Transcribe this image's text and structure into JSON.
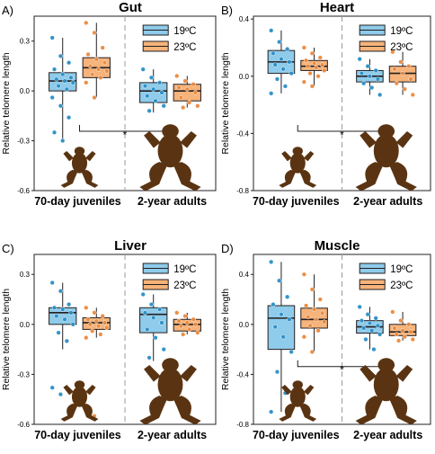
{
  "colors": {
    "cold": "#8fcbea",
    "cold_dark": "#2a8fc8",
    "warm": "#f6b37a",
    "warm_dark": "#ec8a3e",
    "frog": "#5a3412",
    "axis": "#231f20",
    "divider": "#9a9a9a"
  },
  "chart_data": [
    {
      "type": "box",
      "panel_label": "A)",
      "title": "Gut",
      "ylabel": "Relative telomere length",
      "ylim": [
        -0.6,
        0.45
      ],
      "yticks": [
        -0.6,
        -0.3,
        0.0,
        0.3
      ],
      "ytick_labels": [
        "-0.6",
        "-0.3",
        "0.0",
        "0.3"
      ],
      "categories": [
        "70-day juveniles",
        "2-year adults"
      ],
      "legend": [
        "19ºC",
        "23ºC"
      ],
      "legend_position": "top-right",
      "significance": "*",
      "series": [
        {
          "name": "19ºC",
          "boxes": [
            {
              "min": -0.3,
              "q1": 0.0,
              "median": 0.06,
              "q3": 0.11,
              "max": 0.32,
              "points": [
                0.32,
                0.21,
                0.17,
                0.13,
                0.1,
                0.08,
                0.07,
                0.06,
                0.05,
                0.03,
                0.01,
                -0.04,
                -0.09,
                -0.16,
                -0.25,
                -0.3
              ]
            },
            {
              "min": -0.13,
              "q1": -0.07,
              "median": 0.0,
              "q3": 0.05,
              "max": 0.13,
              "points": [
                0.13,
                0.08,
                0.05,
                0.03,
                0.01,
                -0.01,
                -0.03,
                -0.06,
                -0.09,
                -0.12
              ]
            }
          ]
        },
        {
          "name": "23ºC",
          "boxes": [
            {
              "min": -0.04,
              "q1": 0.08,
              "median": 0.14,
              "q3": 0.2,
              "max": 0.41,
              "points": [
                0.41,
                0.35,
                0.26,
                0.22,
                0.19,
                0.17,
                0.15,
                0.13,
                0.12,
                0.1,
                0.08,
                0.05,
                -0.04
              ]
            },
            {
              "min": -0.1,
              "q1": -0.06,
              "median": 0.0,
              "q3": 0.04,
              "max": 0.09,
              "points": [
                0.09,
                0.06,
                0.04,
                0.02,
                0.01,
                -0.01,
                -0.04,
                -0.07,
                -0.09,
                -0.1
              ]
            }
          ]
        }
      ]
    },
    {
      "type": "box",
      "panel_label": "B)",
      "title": "Heart",
      "ylabel": "Relative telomere length",
      "ylim": [
        -0.8,
        0.42
      ],
      "yticks": [
        -0.8,
        -0.4,
        0.0,
        0.4
      ],
      "ytick_labels": [
        "-0.8",
        "-0.4",
        "0.0",
        "0.4"
      ],
      "categories": [
        "70-day juveniles",
        "2-year adults"
      ],
      "legend": [
        "19ºC",
        "23ºC"
      ],
      "legend_position": "top-right",
      "significance": "*",
      "series": [
        {
          "name": "19ºC",
          "boxes": [
            {
              "min": -0.12,
              "q1": 0.02,
              "median": 0.1,
              "q3": 0.18,
              "max": 0.32,
              "points": [
                0.32,
                0.24,
                0.19,
                0.16,
                0.12,
                0.1,
                0.08,
                0.05,
                0.02,
                -0.02,
                -0.07,
                -0.12
              ]
            },
            {
              "min": -0.13,
              "q1": -0.04,
              "median": 0.0,
              "q3": 0.04,
              "max": 0.12,
              "points": [
                0.12,
                0.07,
                0.04,
                0.02,
                0.0,
                -0.02,
                -0.05,
                -0.08,
                -0.13
              ]
            }
          ]
        },
        {
          "name": "23ºC",
          "boxes": [
            {
              "min": -0.07,
              "q1": 0.04,
              "median": 0.07,
              "q3": 0.11,
              "max": 0.2,
              "points": [
                0.2,
                0.16,
                0.13,
                0.11,
                0.09,
                0.08,
                0.07,
                0.06,
                0.04,
                0.02,
                0.0,
                -0.04,
                -0.07
              ]
            },
            {
              "min": -0.13,
              "q1": -0.04,
              "median": 0.02,
              "q3": 0.07,
              "max": 0.17,
              "points": [
                0.17,
                0.1,
                0.07,
                0.05,
                0.02,
                -0.02,
                -0.05,
                -0.09,
                -0.13
              ]
            }
          ]
        }
      ]
    },
    {
      "type": "box",
      "panel_label": "C)",
      "title": "Liver",
      "ylabel": "Relative telomere length",
      "ylim": [
        -0.6,
        0.42
      ],
      "yticks": [
        -0.6,
        -0.3,
        0.0,
        0.3
      ],
      "ytick_labels": [
        "-0.6",
        "-0.3",
        "0.0",
        "0.3"
      ],
      "categories": [
        "70-day juveniles",
        "2-year adults"
      ],
      "legend": [
        "19ºC",
        "23ºC"
      ],
      "legend_position": "top-right",
      "significance": "",
      "series": [
        {
          "name": "19ºC",
          "boxes": [
            {
              "min": -0.15,
              "q1": 0.0,
              "median": 0.07,
              "q3": 0.1,
              "max": 0.25,
              "points": [
                0.25,
                0.2,
                0.12,
                0.1,
                0.09,
                0.07,
                0.05,
                0.03,
                0.0,
                -0.05,
                -0.1,
                -0.38,
                -0.42
              ]
            },
            {
              "min": -0.22,
              "q1": -0.05,
              "median": 0.06,
              "q3": 0.1,
              "max": 0.18,
              "points": [
                0.18,
                0.12,
                0.09,
                0.07,
                0.04,
                0.01,
                -0.03,
                -0.08,
                -0.15,
                -0.2
              ]
            }
          ]
        },
        {
          "name": "23ºC",
          "boxes": [
            {
              "min": -0.08,
              "q1": -0.03,
              "median": 0.01,
              "q3": 0.04,
              "max": 0.1,
              "points": [
                0.1,
                0.07,
                0.05,
                0.03,
                0.02,
                0.01,
                0.0,
                -0.01,
                -0.02,
                -0.04,
                -0.06,
                -0.08,
                -0.55
              ]
            },
            {
              "min": -0.06,
              "q1": -0.04,
              "median": 0.0,
              "q3": 0.03,
              "max": 0.07,
              "points": [
                0.07,
                0.05,
                0.03,
                0.02,
                0.01,
                0.0,
                -0.01,
                -0.03,
                -0.05,
                -0.06
              ]
            }
          ]
        }
      ]
    },
    {
      "type": "box",
      "panel_label": "D)",
      "title": "Muscle",
      "ylabel": "Relative telomere length",
      "ylim": [
        -0.8,
        0.56
      ],
      "yticks": [
        -0.8,
        -0.4,
        0.0,
        0.4
      ],
      "ytick_labels": [
        "-0.8",
        "-0.4",
        "0.0",
        "0.4"
      ],
      "categories": [
        "70-day juveniles",
        "2-year adults"
      ],
      "legend": [
        "19ºC",
        "23ºC"
      ],
      "legend_position": "top-right",
      "significance": "*",
      "series": [
        {
          "name": "19ºC",
          "boxes": [
            {
              "min": -0.7,
              "q1": -0.2,
              "median": 0.05,
              "q3": 0.15,
              "max": 0.5,
              "points": [
                0.5,
                0.35,
                0.22,
                0.16,
                0.08,
                0.04,
                -0.02,
                -0.1,
                -0.22,
                -0.38,
                -0.55,
                -0.7
              ]
            },
            {
              "min": -0.2,
              "q1": -0.07,
              "median": -0.02,
              "q3": 0.03,
              "max": 0.14,
              "points": [
                0.14,
                0.08,
                0.05,
                0.03,
                0.01,
                -0.01,
                -0.03,
                -0.05,
                -0.08,
                -0.12,
                -0.2
              ]
            }
          ]
        },
        {
          "name": "23ºC",
          "boxes": [
            {
              "min": -0.22,
              "q1": -0.03,
              "median": 0.04,
              "q3": 0.13,
              "max": 0.4,
              "points": [
                0.4,
                0.28,
                0.2,
                0.15,
                0.12,
                0.09,
                0.06,
                0.04,
                0.02,
                -0.01,
                -0.05,
                -0.1,
                -0.22
              ]
            },
            {
              "min": -0.13,
              "q1": -0.09,
              "median": -0.06,
              "q3": 0.0,
              "max": 0.1,
              "points": [
                0.1,
                0.03,
                0.0,
                -0.03,
                -0.05,
                -0.06,
                -0.08,
                -0.1,
                -0.12,
                -0.13
              ]
            }
          ]
        }
      ]
    }
  ]
}
